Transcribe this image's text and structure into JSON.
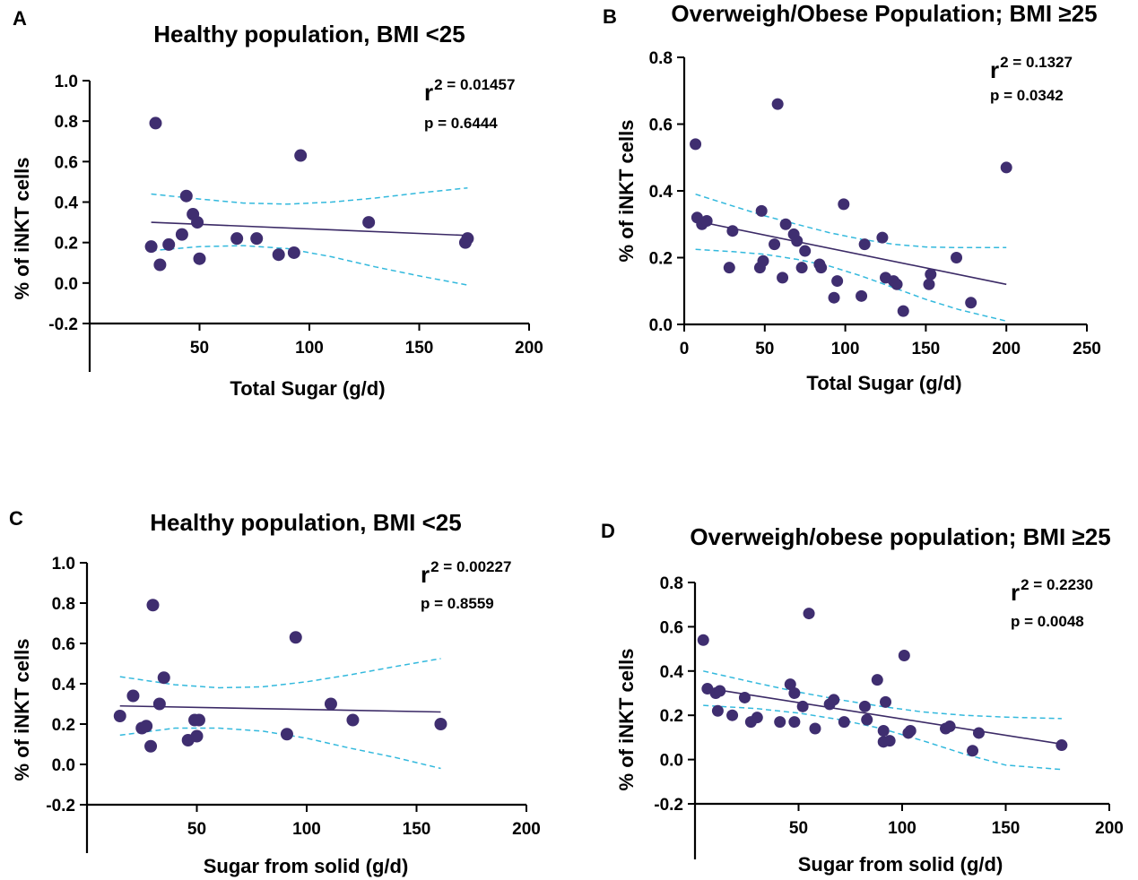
{
  "chart_data": [
    {
      "panel": "A",
      "type": "scatter",
      "title": "Healthy population, BMI <25",
      "xlabel": "Total Sugar (g/d)",
      "ylabel": "% of iNKT cells",
      "xlim": [
        0,
        200
      ],
      "ylim": [
        -0.2,
        1.0
      ],
      "xticks": [
        50,
        100,
        150,
        200
      ],
      "yticks": [
        -0.2,
        0.0,
        0.2,
        0.4,
        0.6,
        0.8,
        1.0
      ],
      "xtick_labels": [
        "50",
        "100",
        "150",
        "200"
      ],
      "ytick_labels": [
        "-0.2",
        "0.0",
        "0.2",
        "0.4",
        "0.6",
        "0.8",
        "1.0"
      ],
      "stats": {
        "r2_prefix": "r",
        "r2_text": "2 = 0.01457",
        "p_text": "p = 0.6444"
      },
      "points": [
        {
          "x": 28,
          "y": 0.18
        },
        {
          "x": 30,
          "y": 0.79
        },
        {
          "x": 32,
          "y": 0.09
        },
        {
          "x": 36,
          "y": 0.19
        },
        {
          "x": 42,
          "y": 0.24
        },
        {
          "x": 44,
          "y": 0.43
        },
        {
          "x": 47,
          "y": 0.34
        },
        {
          "x": 49,
          "y": 0.3
        },
        {
          "x": 50,
          "y": 0.12
        },
        {
          "x": 67,
          "y": 0.22
        },
        {
          "x": 76,
          "y": 0.22
        },
        {
          "x": 86,
          "y": 0.14
        },
        {
          "x": 93,
          "y": 0.15
        },
        {
          "x": 96,
          "y": 0.63
        },
        {
          "x": 127,
          "y": 0.3
        },
        {
          "x": 171,
          "y": 0.2
        },
        {
          "x": 172,
          "y": 0.22
        }
      ],
      "regression": {
        "x": [
          28,
          172
        ],
        "y": [
          0.3,
          0.235
        ]
      },
      "ci_upper": [
        [
          28,
          0.44
        ],
        [
          50,
          0.415
        ],
        [
          70,
          0.395
        ],
        [
          90,
          0.39
        ],
        [
          110,
          0.4
        ],
        [
          130,
          0.42
        ],
        [
          150,
          0.445
        ],
        [
          172,
          0.47
        ]
      ],
      "ci_lower": [
        [
          28,
          0.16
        ],
        [
          50,
          0.18
        ],
        [
          70,
          0.185
        ],
        [
          90,
          0.17
        ],
        [
          110,
          0.13
        ],
        [
          130,
          0.08
        ],
        [
          150,
          0.035
        ],
        [
          172,
          -0.01
        ]
      ]
    },
    {
      "panel": "B",
      "type": "scatter",
      "title": "Overweigh/Obese Population; BMI ≥25",
      "xlabel": "Total Sugar (g/d)",
      "ylabel": "% of iNKT cells",
      "xlim": [
        0,
        250
      ],
      "ylim": [
        0.0,
        0.8
      ],
      "xticks": [
        0,
        50,
        100,
        150,
        200,
        250
      ],
      "yticks": [
        0.0,
        0.2,
        0.4,
        0.6,
        0.8
      ],
      "xtick_labels": [
        "0",
        "50",
        "100",
        "150",
        "200",
        "250"
      ],
      "ytick_labels": [
        "0.0",
        "0.2",
        "0.4",
        "0.6",
        "0.8"
      ],
      "stats": {
        "r2_prefix": "r",
        "r2_text": "2 = 0.1327",
        "p_text": "p = 0.0342"
      },
      "points": [
        {
          "x": 7,
          "y": 0.54
        },
        {
          "x": 8,
          "y": 0.32
        },
        {
          "x": 11,
          "y": 0.3
        },
        {
          "x": 14,
          "y": 0.31
        },
        {
          "x": 28,
          "y": 0.17
        },
        {
          "x": 30,
          "y": 0.28
        },
        {
          "x": 47,
          "y": 0.17
        },
        {
          "x": 48,
          "y": 0.34
        },
        {
          "x": 49,
          "y": 0.19
        },
        {
          "x": 56,
          "y": 0.24
        },
        {
          "x": 58,
          "y": 0.66
        },
        {
          "x": 61,
          "y": 0.14
        },
        {
          "x": 63,
          "y": 0.3
        },
        {
          "x": 68,
          "y": 0.27
        },
        {
          "x": 70,
          "y": 0.25
        },
        {
          "x": 73,
          "y": 0.17
        },
        {
          "x": 75,
          "y": 0.22
        },
        {
          "x": 84,
          "y": 0.18
        },
        {
          "x": 85,
          "y": 0.17
        },
        {
          "x": 93,
          "y": 0.08
        },
        {
          "x": 95,
          "y": 0.13
        },
        {
          "x": 99,
          "y": 0.36
        },
        {
          "x": 110,
          "y": 0.085
        },
        {
          "x": 112,
          "y": 0.24
        },
        {
          "x": 123,
          "y": 0.26
        },
        {
          "x": 125,
          "y": 0.14
        },
        {
          "x": 130,
          "y": 0.13
        },
        {
          "x": 132,
          "y": 0.12
        },
        {
          "x": 136,
          "y": 0.04
        },
        {
          "x": 152,
          "y": 0.12
        },
        {
          "x": 153,
          "y": 0.15
        },
        {
          "x": 169,
          "y": 0.2
        },
        {
          "x": 178,
          "y": 0.065
        },
        {
          "x": 200,
          "y": 0.47
        }
      ],
      "regression": {
        "x": [
          7,
          200
        ],
        "y": [
          0.31,
          0.12
        ]
      },
      "ci_upper": [
        [
          7,
          0.39
        ],
        [
          30,
          0.355
        ],
        [
          50,
          0.325
        ],
        [
          70,
          0.3
        ],
        [
          90,
          0.275
        ],
        [
          110,
          0.255
        ],
        [
          130,
          0.24
        ],
        [
          150,
          0.232
        ],
        [
          170,
          0.23
        ],
        [
          200,
          0.23
        ]
      ],
      "ci_lower": [
        [
          7,
          0.225
        ],
        [
          30,
          0.218
        ],
        [
          50,
          0.21
        ],
        [
          70,
          0.195
        ],
        [
          90,
          0.175
        ],
        [
          110,
          0.145
        ],
        [
          130,
          0.11
        ],
        [
          150,
          0.075
        ],
        [
          170,
          0.045
        ],
        [
          200,
          0.01
        ]
      ]
    },
    {
      "panel": "C",
      "type": "scatter",
      "title": "Healthy population, BMI <25",
      "xlabel": "Sugar from solid (g/d)",
      "ylabel": "% of iNKT cells",
      "xlim": [
        0,
        200
      ],
      "ylim": [
        -0.2,
        1.0
      ],
      "xticks": [
        50,
        100,
        150,
        200
      ],
      "yticks": [
        -0.2,
        0.0,
        0.2,
        0.4,
        0.6,
        0.8,
        1.0
      ],
      "xtick_labels": [
        "50",
        "100",
        "150",
        "200"
      ],
      "ytick_labels": [
        "-0.2",
        "0.0",
        "0.2",
        "0.4",
        "0.6",
        "0.8",
        "1.0"
      ],
      "stats": {
        "r2_prefix": "r",
        "r2_text": "2 = 0.00227",
        "p_text": "p = 0.8559"
      },
      "points": [
        {
          "x": 15,
          "y": 0.24
        },
        {
          "x": 21,
          "y": 0.34
        },
        {
          "x": 25,
          "y": 0.18
        },
        {
          "x": 27,
          "y": 0.19
        },
        {
          "x": 29,
          "y": 0.09
        },
        {
          "x": 30,
          "y": 0.79
        },
        {
          "x": 33,
          "y": 0.3
        },
        {
          "x": 35,
          "y": 0.43
        },
        {
          "x": 46,
          "y": 0.12
        },
        {
          "x": 49,
          "y": 0.22
        },
        {
          "x": 50,
          "y": 0.14
        },
        {
          "x": 51,
          "y": 0.22
        },
        {
          "x": 91,
          "y": 0.15
        },
        {
          "x": 95,
          "y": 0.63
        },
        {
          "x": 111,
          "y": 0.3
        },
        {
          "x": 121,
          "y": 0.22
        },
        {
          "x": 161,
          "y": 0.2
        }
      ],
      "regression": {
        "x": [
          15,
          161
        ],
        "y": [
          0.29,
          0.26
        ]
      },
      "ci_upper": [
        [
          15,
          0.435
        ],
        [
          40,
          0.395
        ],
        [
          60,
          0.38
        ],
        [
          80,
          0.385
        ],
        [
          100,
          0.41
        ],
        [
          120,
          0.445
        ],
        [
          140,
          0.485
        ],
        [
          161,
          0.525
        ]
      ],
      "ci_lower": [
        [
          15,
          0.145
        ],
        [
          40,
          0.18
        ],
        [
          60,
          0.18
        ],
        [
          80,
          0.165
        ],
        [
          100,
          0.13
        ],
        [
          120,
          0.08
        ],
        [
          140,
          0.035
        ],
        [
          161,
          -0.02
        ]
      ]
    },
    {
      "panel": "D",
      "type": "scatter",
      "title": "Overweigh/obese population; BMI ≥25",
      "xlabel": "Sugar from solid (g/d)",
      "ylabel": "% of iNKT cells",
      "xlim": [
        0,
        200
      ],
      "ylim": [
        -0.2,
        0.8
      ],
      "xticks": [
        50,
        100,
        150,
        200
      ],
      "yticks": [
        -0.2,
        0.0,
        0.2,
        0.4,
        0.6,
        0.8
      ],
      "xtick_labels": [
        "50",
        "100",
        "150",
        "200"
      ],
      "ytick_labels": [
        "-0.2",
        "0.0",
        "0.2",
        "0.4",
        "0.6",
        "0.8"
      ],
      "stats": {
        "r2_prefix": "r",
        "r2_text": "2 = 0.2230",
        "p_text": "p = 0.0048"
      },
      "points": [
        {
          "x": 4,
          "y": 0.54
        },
        {
          "x": 6,
          "y": 0.32
        },
        {
          "x": 10,
          "y": 0.3
        },
        {
          "x": 11,
          "y": 0.22
        },
        {
          "x": 12,
          "y": 0.31
        },
        {
          "x": 18,
          "y": 0.2
        },
        {
          "x": 24,
          "y": 0.28
        },
        {
          "x": 27,
          "y": 0.17
        },
        {
          "x": 30,
          "y": 0.19
        },
        {
          "x": 41,
          "y": 0.17
        },
        {
          "x": 46,
          "y": 0.34
        },
        {
          "x": 48,
          "y": 0.3
        },
        {
          "x": 48,
          "y": 0.17
        },
        {
          "x": 52,
          "y": 0.24
        },
        {
          "x": 55,
          "y": 0.66
        },
        {
          "x": 58,
          "y": 0.14
        },
        {
          "x": 65,
          "y": 0.25
        },
        {
          "x": 67,
          "y": 0.27
        },
        {
          "x": 72,
          "y": 0.17
        },
        {
          "x": 82,
          "y": 0.24
        },
        {
          "x": 83,
          "y": 0.18
        },
        {
          "x": 88,
          "y": 0.36
        },
        {
          "x": 91,
          "y": 0.08
        },
        {
          "x": 91,
          "y": 0.13
        },
        {
          "x": 92,
          "y": 0.26
        },
        {
          "x": 94,
          "y": 0.085
        },
        {
          "x": 101,
          "y": 0.47
        },
        {
          "x": 103,
          "y": 0.12
        },
        {
          "x": 104,
          "y": 0.13
        },
        {
          "x": 121,
          "y": 0.14
        },
        {
          "x": 123,
          "y": 0.15
        },
        {
          "x": 134,
          "y": 0.04
        },
        {
          "x": 137,
          "y": 0.12
        },
        {
          "x": 177,
          "y": 0.065
        }
      ],
      "regression": {
        "x": [
          4,
          177
        ],
        "y": [
          0.325,
          0.07
        ]
      },
      "ci_upper": [
        [
          4,
          0.4
        ],
        [
          30,
          0.345
        ],
        [
          50,
          0.305
        ],
        [
          70,
          0.27
        ],
        [
          90,
          0.24
        ],
        [
          110,
          0.215
        ],
        [
          130,
          0.2
        ],
        [
          150,
          0.192
        ],
        [
          177,
          0.185
        ]
      ],
      "ci_lower": [
        [
          4,
          0.245
        ],
        [
          30,
          0.23
        ],
        [
          50,
          0.21
        ],
        [
          70,
          0.18
        ],
        [
          90,
          0.14
        ],
        [
          110,
          0.085
        ],
        [
          130,
          0.025
        ],
        [
          150,
          -0.025
        ],
        [
          177,
          -0.045
        ]
      ]
    }
  ]
}
